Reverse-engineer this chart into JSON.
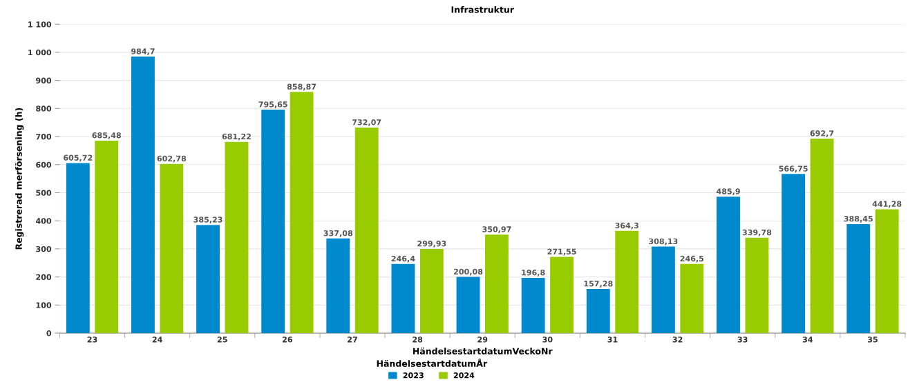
{
  "chart_data": {
    "type": "bar",
    "title": "Infrastruktur",
    "xlabel": "HändelsestartdatumVeckoNr",
    "ylabel": "Registrerad merförsening (h)",
    "legend_title": "HändelsestartdatumÅr",
    "categories": [
      "23",
      "24",
      "25",
      "26",
      "27",
      "28",
      "29",
      "30",
      "31",
      "32",
      "33",
      "34",
      "35"
    ],
    "series": [
      {
        "name": "2023",
        "color": "#008acd",
        "values": [
          605.72,
          984.7,
          385.23,
          795.65,
          337.08,
          246.4,
          200.08,
          196.8,
          157.28,
          308.13,
          485.9,
          566.75,
          388.45
        ],
        "value_labels": [
          "605,72",
          "984,7",
          "385,23",
          "795,65",
          "337,08",
          "246,4",
          "200,08",
          "196,8",
          "157,28",
          "308,13",
          "485,9",
          "566,75",
          "388,45"
        ]
      },
      {
        "name": "2024",
        "color": "#99cc00",
        "values": [
          685.48,
          602.78,
          681.22,
          858.87,
          732.07,
          299.93,
          350.97,
          271.55,
          364.3,
          246.5,
          339.78,
          692.7,
          441.28
        ],
        "value_labels": [
          "685,48",
          "602,78",
          "681,22",
          "858,87",
          "732,07",
          "299,93",
          "350,97",
          "271,55",
          "364,3",
          "246,5",
          "339,78",
          "692,7",
          "441,28"
        ]
      }
    ],
    "ylim": [
      0,
      1100
    ],
    "yticks": [
      0,
      100,
      200,
      300,
      400,
      500,
      600,
      700,
      800,
      900,
      {
        "value": 1000,
        "label": "1 000"
      },
      {
        "value": 1100,
        "label": "1 100"
      }
    ],
    "grid": "y",
    "legend": "bottom"
  }
}
